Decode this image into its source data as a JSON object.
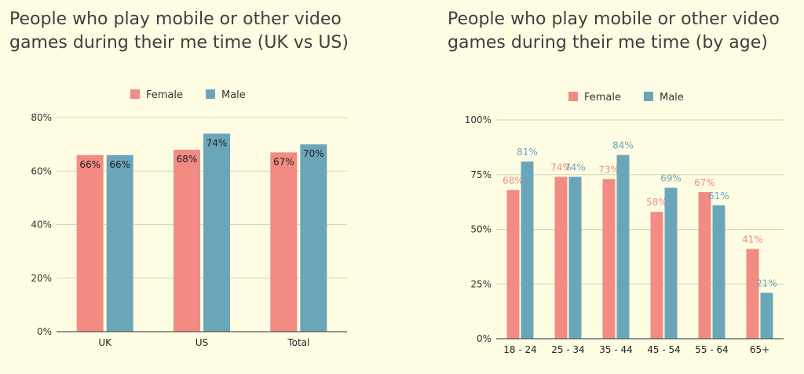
{
  "colors": {
    "female": "#f28b82",
    "male": "#6aa6b8",
    "grid": "#d6d3b0",
    "axis": "#555555",
    "background": "#fefde4"
  },
  "chart_data": [
    {
      "type": "bar",
      "title": "People who play mobile or other video games during their me time (UK vs US)",
      "categories": [
        "UK",
        "US",
        "Total"
      ],
      "series": [
        {
          "name": "Female",
          "values": [
            66,
            68,
            67
          ],
          "labels": [
            "66%",
            "68%",
            "67%"
          ]
        },
        {
          "name": "Male",
          "values": [
            66,
            74,
            70
          ],
          "labels": [
            "66%",
            "74%",
            "70%"
          ]
        }
      ],
      "ylim": [
        0,
        80
      ],
      "yticks": [
        0,
        20,
        40,
        60,
        80
      ],
      "ytick_labels": [
        "0%",
        "20%",
        "40%",
        "60%",
        "80%"
      ],
      "legend": "top-center",
      "grid": true,
      "data_label_color": "dark"
    },
    {
      "type": "bar",
      "title": "People who play mobile or other video games during their me time (by age)",
      "categories": [
        "18 - 24",
        "25 - 34",
        "35 - 44",
        "45 - 54",
        "55 - 64",
        "65+"
      ],
      "series": [
        {
          "name": "Female",
          "values": [
            68,
            74,
            73,
            58,
            67,
            41
          ],
          "labels": [
            "68%",
            "74%",
            "73%",
            "58%",
            "67%",
            "41%"
          ]
        },
        {
          "name": "Male",
          "values": [
            81,
            74,
            84,
            69,
            61,
            21
          ],
          "labels": [
            "81%",
            "74%",
            "84%",
            "69%",
            "61%",
            "21%"
          ]
        }
      ],
      "ylim": [
        0,
        100
      ],
      "yticks": [
        0,
        25,
        50,
        75,
        100
      ],
      "ytick_labels": [
        "0%",
        "25%",
        "50%",
        "75%",
        "100%"
      ],
      "legend": "top-center",
      "grid": true,
      "data_label_color": "series"
    }
  ]
}
